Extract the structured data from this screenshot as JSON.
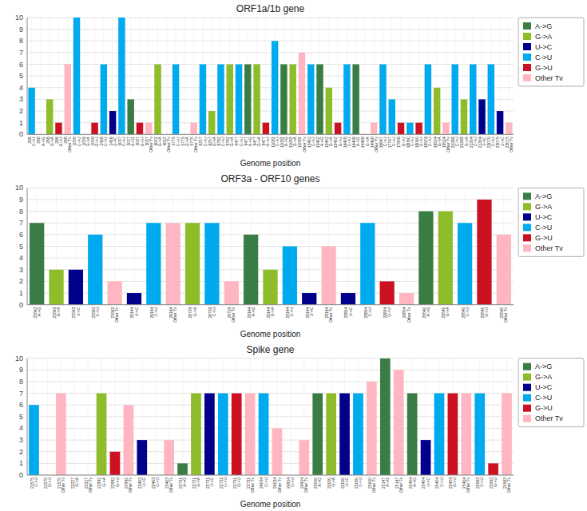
{
  "chart_data": [
    {
      "type": "bar",
      "title": "ORF1a/1b gene",
      "xlabel": "Genome position",
      "categories": [
        "266\nC->U",
        "266\nA->G",
        "266\nG->A",
        "266\nG->U",
        "266\nOther Tv",
        "1059\nC->U",
        "1059\nG->A",
        "1059\nG->U",
        "2416\nC->U",
        "2416\nU->C",
        "3037\nC->U",
        "3037\nA->G",
        "3037\nG->U",
        "3037\nOther Tv",
        "4002\nG->A",
        "4002\nOther Tv",
        "5775\nC->U",
        "5775\nG->A",
        "5775\nOther Tv",
        "6257\nC->U",
        "6257\nG->A",
        "8782\nC->U",
        "8782\nG->A",
        "9477\nC->U",
        "9477\nA->G",
        "9477\nG->A",
        "9477\nG->U",
        "11083\nC->U",
        "11083\nA->G",
        "11083\nG->A",
        "11083\nOther Tv",
        "13402\nC->U",
        "13402\nA->G",
        "13402\nG->A",
        "13402\nG->U",
        "14408\nC->U",
        "14408\nA->G",
        "14408\nG->A",
        "14408\nOther Tv",
        "16647\nC->U",
        "17747\nC->U",
        "17858\nG->U",
        "18060\nC->U",
        "18060\nG->U",
        "19524\nC->U",
        "19524\nG->A",
        "19524\nOther Tv",
        "20268\nC->U",
        "20268\nG->A",
        "21304\nC->U",
        "21304\nU->C",
        "23075\nC->U",
        "23075\nU->C",
        "23075\nOther Tv"
      ],
      "series": [
        {
          "name": "A->G",
          "color": "#3a7d44",
          "values": [
            null,
            0,
            null,
            null,
            null,
            null,
            null,
            null,
            null,
            null,
            null,
            3,
            null,
            null,
            null,
            null,
            null,
            null,
            null,
            null,
            null,
            null,
            null,
            null,
            6,
            null,
            null,
            null,
            6,
            null,
            null,
            null,
            6,
            null,
            null,
            null,
            6,
            null,
            null,
            null,
            null,
            null,
            null,
            null,
            null,
            null,
            null,
            null,
            null,
            null,
            null,
            null,
            null,
            null
          ]
        },
        {
          "name": "G->A",
          "color": "#8fbc2a",
          "values": [
            null,
            null,
            3,
            null,
            null,
            null,
            0,
            null,
            null,
            null,
            null,
            null,
            null,
            null,
            6,
            null,
            null,
            0,
            null,
            null,
            2,
            null,
            6,
            null,
            null,
            6,
            null,
            null,
            null,
            6,
            null,
            null,
            null,
            4,
            null,
            null,
            null,
            0,
            null,
            null,
            null,
            null,
            null,
            null,
            null,
            4,
            null,
            null,
            3,
            null,
            null,
            null,
            null,
            null
          ]
        },
        {
          "name": "U->C",
          "color": "#00008b",
          "values": [
            null,
            null,
            null,
            null,
            null,
            null,
            null,
            null,
            null,
            2,
            null,
            null,
            null,
            null,
            null,
            null,
            null,
            null,
            null,
            null,
            null,
            null,
            null,
            null,
            null,
            null,
            null,
            null,
            null,
            null,
            null,
            null,
            null,
            null,
            null,
            null,
            null,
            null,
            null,
            null,
            null,
            null,
            null,
            null,
            null,
            null,
            null,
            null,
            null,
            null,
            3,
            null,
            2,
            null
          ]
        },
        {
          "name": "C->U",
          "color": "#00aaee",
          "values": [
            4,
            null,
            null,
            null,
            null,
            10,
            null,
            null,
            6,
            null,
            10,
            null,
            null,
            null,
            null,
            null,
            6,
            null,
            null,
            6,
            null,
            6,
            null,
            6,
            null,
            null,
            null,
            8,
            null,
            null,
            null,
            6,
            null,
            null,
            null,
            6,
            null,
            null,
            null,
            6,
            3,
            null,
            1,
            null,
            6,
            null,
            null,
            6,
            null,
            6,
            null,
            6,
            null,
            null
          ]
        },
        {
          "name": "G->U",
          "color": "#cc1122",
          "values": [
            null,
            null,
            null,
            1,
            null,
            null,
            null,
            1,
            null,
            null,
            null,
            null,
            1,
            null,
            null,
            null,
            null,
            null,
            null,
            null,
            null,
            null,
            null,
            null,
            null,
            null,
            1,
            null,
            null,
            null,
            null,
            null,
            null,
            null,
            1,
            null,
            null,
            null,
            null,
            null,
            null,
            1,
            null,
            1,
            null,
            null,
            null,
            null,
            null,
            null,
            null,
            null,
            null,
            null
          ]
        },
        {
          "name": "Other Tv",
          "color": "#ffb6c1",
          "values": [
            null,
            null,
            null,
            null,
            6,
            null,
            null,
            null,
            null,
            null,
            null,
            null,
            null,
            1,
            null,
            0,
            null,
            null,
            1,
            null,
            null,
            null,
            null,
            null,
            null,
            null,
            null,
            null,
            null,
            null,
            7,
            null,
            null,
            null,
            null,
            null,
            null,
            null,
            1,
            null,
            null,
            null,
            null,
            null,
            null,
            null,
            1,
            null,
            null,
            null,
            null,
            null,
            null,
            1
          ]
        }
      ],
      "stacked": true,
      "ylim": [
        0,
        10
      ],
      "yticks": [
        0,
        1,
        2,
        3,
        4,
        5,
        6,
        7,
        8,
        9,
        10
      ],
      "grid": true,
      "legend": "upper right"
    },
    {
      "type": "bar",
      "title": "ORF3a - ORF10  genes",
      "xlabel": "Genome position",
      "categories": [
        "25563\nA->G",
        "25563\nG->A",
        "25563\nU->C",
        "25563\nC->U",
        "25563\nOther Tv",
        "26144\nU->C",
        "26144\nC->U",
        "26144\nOther Tv",
        "26729\nG->A",
        "26729\nC->U",
        "26729\nOther Tv",
        "28144\nA->G",
        "28144\nG->A",
        "28144\nC->U",
        "28144\nU->C",
        "28144\nOther Tv",
        "28854\nU->C",
        "28854\nC->U",
        "28854\nG->U",
        "28854\nOther Tv",
        "29540\nA->G",
        "29540\nG->A",
        "29540\nC->U",
        "29540\nG->U",
        "29540\nOther Tv"
      ],
      "series": [
        {
          "name": "A->G",
          "color": "#3a7d44",
          "values": [
            7,
            null,
            null,
            null,
            null,
            null,
            null,
            null,
            null,
            null,
            null,
            6,
            null,
            null,
            null,
            null,
            null,
            null,
            null,
            null,
            8,
            null,
            null,
            null,
            null
          ]
        },
        {
          "name": "G->A",
          "color": "#8fbc2a",
          "values": [
            null,
            3,
            null,
            null,
            null,
            null,
            null,
            null,
            7,
            null,
            null,
            null,
            3,
            null,
            null,
            null,
            null,
            null,
            null,
            null,
            null,
            8,
            null,
            null,
            null
          ]
        },
        {
          "name": "U->C",
          "color": "#00008b",
          "values": [
            null,
            null,
            3,
            null,
            null,
            1,
            null,
            null,
            null,
            null,
            null,
            null,
            null,
            null,
            1,
            null,
            1,
            null,
            null,
            null,
            null,
            null,
            null,
            null,
            null
          ]
        },
        {
          "name": "C->U",
          "color": "#00aaee",
          "values": [
            null,
            null,
            null,
            6,
            null,
            null,
            7,
            null,
            null,
            7,
            null,
            null,
            null,
            5,
            null,
            null,
            null,
            7,
            null,
            null,
            null,
            null,
            7,
            null,
            null
          ]
        },
        {
          "name": "G->U",
          "color": "#cc1122",
          "values": [
            null,
            null,
            null,
            null,
            null,
            null,
            null,
            null,
            null,
            null,
            null,
            null,
            null,
            null,
            null,
            null,
            null,
            null,
            2,
            null,
            null,
            null,
            null,
            9,
            null
          ]
        },
        {
          "name": "Other Tv",
          "color": "#ffb6c1",
          "values": [
            null,
            null,
            null,
            null,
            2,
            null,
            null,
            7,
            null,
            null,
            2,
            null,
            null,
            null,
            null,
            5,
            null,
            null,
            null,
            1,
            null,
            null,
            null,
            null,
            6
          ]
        }
      ],
      "stacked": true,
      "ylim": [
        0,
        10
      ],
      "yticks": [
        0,
        1,
        2,
        3,
        4,
        5,
        6,
        7,
        8,
        9,
        10
      ],
      "grid": true,
      "legend": "upper right"
    },
    {
      "type": "bar",
      "title": "Spike gene",
      "xlabel": "Genome position",
      "categories": [
        "21575\nC->U",
        "21575\nG->U",
        "21575\nOther Tv",
        "22227\nG->A",
        "22227\nOther Tv",
        "22992\nG->A",
        "22992\nG->U",
        "22992\nOther Tv",
        "23403\nU->C",
        "23403\nC->U",
        "23403\nOther Tv",
        "23731\nA->G",
        "23731\nG->A",
        "23731\nU->C",
        "23731\nC->U",
        "23731\nG->U",
        "23731\nOther Tv",
        "24034\nC->U",
        "24034\nOther Tv",
        "24914\nC->U",
        "24914\nOther Tv",
        "25000\nA->G",
        "25000\nG->A",
        "25000\nU->C",
        "25000\nC->U",
        "25000\nOther Tv",
        "25147\nA->G",
        "25147\nOther Tv",
        "25404\nA->G",
        "25404\nU->C",
        "25404\nC->U",
        "25404\nG->U",
        "25404\nOther Tv",
        "25563\nC->U",
        "25563\nG->U",
        "25563\nOther Tv"
      ],
      "series": [
        {
          "name": "A->G",
          "color": "#3a7d44",
          "values": [
            null,
            null,
            null,
            null,
            null,
            null,
            null,
            null,
            null,
            null,
            null,
            1,
            null,
            null,
            null,
            null,
            null,
            null,
            null,
            null,
            null,
            7,
            null,
            null,
            null,
            null,
            10,
            null,
            7,
            null,
            null,
            null,
            null,
            null,
            null,
            null
          ]
        },
        {
          "name": "G->A",
          "color": "#8fbc2a",
          "values": [
            null,
            null,
            null,
            0,
            null,
            7,
            null,
            null,
            null,
            null,
            null,
            null,
            7,
            null,
            null,
            null,
            null,
            null,
            null,
            null,
            null,
            null,
            7,
            null,
            null,
            null,
            null,
            null,
            null,
            null,
            null,
            null,
            null,
            null,
            null,
            null
          ]
        },
        {
          "name": "U->C",
          "color": "#00008b",
          "values": [
            null,
            null,
            null,
            null,
            null,
            null,
            null,
            null,
            3,
            null,
            null,
            null,
            null,
            7,
            null,
            null,
            null,
            null,
            null,
            null,
            null,
            null,
            null,
            7,
            null,
            null,
            null,
            null,
            null,
            3,
            null,
            null,
            null,
            null,
            null,
            null
          ]
        },
        {
          "name": "C->U",
          "color": "#00aaee",
          "values": [
            6,
            null,
            null,
            null,
            null,
            null,
            null,
            null,
            null,
            0,
            null,
            null,
            null,
            null,
            7,
            null,
            null,
            7,
            null,
            0,
            null,
            null,
            null,
            null,
            7,
            null,
            null,
            null,
            null,
            null,
            7,
            null,
            null,
            7,
            null,
            null
          ]
        },
        {
          "name": "G->U",
          "color": "#cc1122",
          "values": [
            null,
            0,
            null,
            null,
            null,
            null,
            2,
            null,
            null,
            null,
            null,
            null,
            null,
            null,
            null,
            7,
            null,
            null,
            null,
            null,
            null,
            null,
            null,
            null,
            null,
            null,
            null,
            null,
            null,
            null,
            null,
            7,
            null,
            null,
            1,
            null
          ]
        },
        {
          "name": "Other Tv",
          "color": "#ffb6c1",
          "values": [
            null,
            null,
            7,
            null,
            0,
            null,
            null,
            6,
            null,
            null,
            3,
            null,
            null,
            null,
            null,
            null,
            7,
            null,
            4,
            null,
            3,
            null,
            null,
            null,
            null,
            8,
            null,
            9,
            null,
            null,
            null,
            null,
            7,
            null,
            null,
            7
          ]
        }
      ],
      "stacked": true,
      "ylim": [
        0,
        10
      ],
      "yticks": [
        0,
        1,
        2,
        3,
        4,
        5,
        6,
        7,
        8,
        9,
        10
      ],
      "grid": true,
      "legend": "upper right"
    }
  ]
}
